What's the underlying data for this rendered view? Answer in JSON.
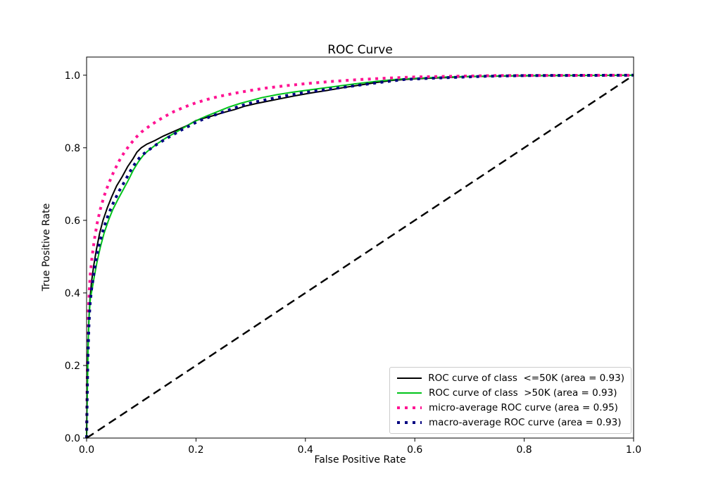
{
  "chart_data": {
    "type": "line",
    "title": "ROC Curve",
    "xlabel": "False Positive Rate",
    "ylabel": "True Positive Rate",
    "xlim": [
      0.0,
      1.0
    ],
    "ylim": [
      0.0,
      1.05
    ],
    "xticks": [
      0.0,
      0.2,
      0.4,
      0.6,
      0.8,
      1.0
    ],
    "yticks": [
      0.0,
      0.2,
      0.4,
      0.6,
      0.8,
      1.0
    ],
    "grid": false,
    "legend_position": "lower right",
    "series": [
      {
        "name": "class-le50k",
        "label": "ROC curve of class  <=50K (area = 0.93)",
        "area": 0.93,
        "color": "#000000",
        "style": "solid",
        "width": 2,
        "points": [
          [
            0,
            0
          ],
          [
            0.001,
            0.12
          ],
          [
            0.002,
            0.22
          ],
          [
            0.004,
            0.32
          ],
          [
            0.006,
            0.38
          ],
          [
            0.009,
            0.43
          ],
          [
            0.013,
            0.475
          ],
          [
            0.018,
            0.52
          ],
          [
            0.024,
            0.565
          ],
          [
            0.03,
            0.6
          ],
          [
            0.038,
            0.635
          ],
          [
            0.046,
            0.665
          ],
          [
            0.055,
            0.695
          ],
          [
            0.065,
            0.72
          ],
          [
            0.075,
            0.748
          ],
          [
            0.085,
            0.77
          ],
          [
            0.092,
            0.788
          ],
          [
            0.1,
            0.8
          ],
          [
            0.11,
            0.81
          ],
          [
            0.125,
            0.82
          ],
          [
            0.14,
            0.832
          ],
          [
            0.155,
            0.842
          ],
          [
            0.17,
            0.852
          ],
          [
            0.185,
            0.862
          ],
          [
            0.2,
            0.875
          ],
          [
            0.215,
            0.882
          ],
          [
            0.23,
            0.888
          ],
          [
            0.25,
            0.897
          ],
          [
            0.27,
            0.905
          ],
          [
            0.29,
            0.915
          ],
          [
            0.31,
            0.922
          ],
          [
            0.33,
            0.928
          ],
          [
            0.35,
            0.934
          ],
          [
            0.38,
            0.943
          ],
          [
            0.41,
            0.951
          ],
          [
            0.44,
            0.958
          ],
          [
            0.47,
            0.966
          ],
          [
            0.5,
            0.973
          ],
          [
            0.53,
            0.98
          ],
          [
            0.56,
            0.986
          ],
          [
            0.6,
            0.99
          ],
          [
            0.65,
            0.993
          ],
          [
            0.7,
            0.996
          ],
          [
            0.78,
            0.998
          ],
          [
            0.85,
            0.999
          ],
          [
            1,
            1
          ]
        ]
      },
      {
        "name": "class-gt50k",
        "label": "ROC curve of class  >50K (area = 0.93)",
        "area": 0.93,
        "color": "#00c41a",
        "style": "solid",
        "width": 2,
        "points": [
          [
            0,
            0
          ],
          [
            0.001,
            0.1
          ],
          [
            0.002,
            0.18
          ],
          [
            0.003,
            0.27
          ],
          [
            0.005,
            0.345
          ],
          [
            0.007,
            0.385
          ],
          [
            0.01,
            0.41
          ],
          [
            0.014,
            0.445
          ],
          [
            0.019,
            0.485
          ],
          [
            0.025,
            0.525
          ],
          [
            0.032,
            0.565
          ],
          [
            0.04,
            0.6
          ],
          [
            0.048,
            0.63
          ],
          [
            0.057,
            0.657
          ],
          [
            0.066,
            0.682
          ],
          [
            0.076,
            0.71
          ],
          [
            0.086,
            0.74
          ],
          [
            0.095,
            0.762
          ],
          [
            0.105,
            0.782
          ],
          [
            0.115,
            0.795
          ],
          [
            0.13,
            0.812
          ],
          [
            0.145,
            0.827
          ],
          [
            0.16,
            0.84
          ],
          [
            0.175,
            0.853
          ],
          [
            0.19,
            0.866
          ],
          [
            0.205,
            0.878
          ],
          [
            0.22,
            0.888
          ],
          [
            0.24,
            0.9
          ],
          [
            0.26,
            0.912
          ],
          [
            0.28,
            0.922
          ],
          [
            0.3,
            0.93
          ],
          [
            0.32,
            0.938
          ],
          [
            0.35,
            0.947
          ],
          [
            0.38,
            0.954
          ],
          [
            0.41,
            0.96
          ],
          [
            0.45,
            0.968
          ],
          [
            0.49,
            0.976
          ],
          [
            0.53,
            0.983
          ],
          [
            0.57,
            0.989
          ],
          [
            0.61,
            0.992
          ],
          [
            0.66,
            0.995
          ],
          [
            0.72,
            0.997
          ],
          [
            0.8,
            0.999
          ],
          [
            1,
            1
          ]
        ]
      },
      {
        "name": "micro-average",
        "label": "micro-average ROC curve (area = 0.95)",
        "area": 0.95,
        "color": "#ff1493",
        "style": "dotted",
        "width": 4,
        "points": [
          [
            0,
            0
          ],
          [
            0.001,
            0.15
          ],
          [
            0.002,
            0.26
          ],
          [
            0.003,
            0.34
          ],
          [
            0.005,
            0.41
          ],
          [
            0.007,
            0.455
          ],
          [
            0.01,
            0.5
          ],
          [
            0.014,
            0.545
          ],
          [
            0.019,
            0.59
          ],
          [
            0.025,
            0.63
          ],
          [
            0.032,
            0.667
          ],
          [
            0.04,
            0.7
          ],
          [
            0.05,
            0.735
          ],
          [
            0.06,
            0.765
          ],
          [
            0.07,
            0.79
          ],
          [
            0.08,
            0.81
          ],
          [
            0.09,
            0.828
          ],
          [
            0.1,
            0.843
          ],
          [
            0.115,
            0.86
          ],
          [
            0.13,
            0.875
          ],
          [
            0.145,
            0.888
          ],
          [
            0.16,
            0.9
          ],
          [
            0.18,
            0.913
          ],
          [
            0.2,
            0.924
          ],
          [
            0.22,
            0.933
          ],
          [
            0.24,
            0.941
          ],
          [
            0.27,
            0.95
          ],
          [
            0.3,
            0.958
          ],
          [
            0.33,
            0.965
          ],
          [
            0.37,
            0.972
          ],
          [
            0.41,
            0.978
          ],
          [
            0.45,
            0.983
          ],
          [
            0.5,
            0.988
          ],
          [
            0.55,
            0.992
          ],
          [
            0.6,
            0.995
          ],
          [
            0.67,
            0.997
          ],
          [
            0.75,
            0.999
          ],
          [
            1,
            1
          ]
        ]
      },
      {
        "name": "macro-average",
        "label": "macro-average ROC curve (area = 0.93)",
        "area": 0.93,
        "color": "#000080",
        "style": "dotted",
        "width": 4,
        "points": [
          [
            0,
            0
          ],
          [
            0.001,
            0.11
          ],
          [
            0.002,
            0.2
          ],
          [
            0.004,
            0.3
          ],
          [
            0.006,
            0.365
          ],
          [
            0.009,
            0.41
          ],
          [
            0.013,
            0.45
          ],
          [
            0.018,
            0.5
          ],
          [
            0.025,
            0.545
          ],
          [
            0.032,
            0.582
          ],
          [
            0.04,
            0.617
          ],
          [
            0.05,
            0.652
          ],
          [
            0.06,
            0.682
          ],
          [
            0.07,
            0.708
          ],
          [
            0.08,
            0.736
          ],
          [
            0.09,
            0.76
          ],
          [
            0.1,
            0.778
          ],
          [
            0.112,
            0.792
          ],
          [
            0.127,
            0.808
          ],
          [
            0.142,
            0.822
          ],
          [
            0.158,
            0.836
          ],
          [
            0.172,
            0.848
          ],
          [
            0.19,
            0.862
          ],
          [
            0.205,
            0.874
          ],
          [
            0.225,
            0.885
          ],
          [
            0.245,
            0.896
          ],
          [
            0.265,
            0.907
          ],
          [
            0.285,
            0.917
          ],
          [
            0.305,
            0.925
          ],
          [
            0.33,
            0.933
          ],
          [
            0.36,
            0.942
          ],
          [
            0.39,
            0.95
          ],
          [
            0.42,
            0.957
          ],
          [
            0.46,
            0.965
          ],
          [
            0.5,
            0.973
          ],
          [
            0.54,
            0.981
          ],
          [
            0.58,
            0.988
          ],
          [
            0.62,
            0.991
          ],
          [
            0.67,
            0.994
          ],
          [
            0.73,
            0.997
          ],
          [
            0.8,
            0.999
          ],
          [
            1,
            1
          ]
        ]
      },
      {
        "name": "chance-diagonal",
        "label": null,
        "color": "#000000",
        "style": "dashed",
        "width": 2.5,
        "points": [
          [
            0,
            0
          ],
          [
            1,
            1
          ]
        ]
      }
    ]
  }
}
